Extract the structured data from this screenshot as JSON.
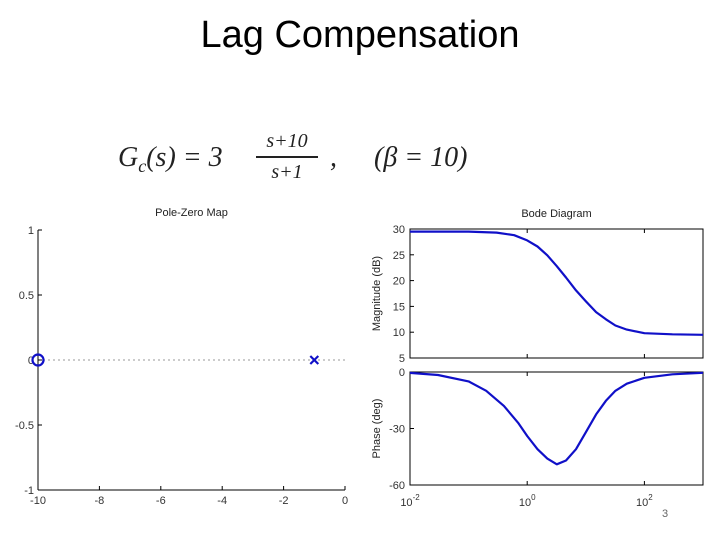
{
  "slide": {
    "title": "Lag Compensation",
    "page_number": "3",
    "formula": {
      "lhs": "G",
      "lhs_sub": "c",
      "lhs_arg": "(s) = 3",
      "numerator": "s+10",
      "denominator": "s+1",
      "separator": ",",
      "beta": "(β = 10)"
    }
  },
  "colors": {
    "plot": "#1010c8",
    "axis": "#000000",
    "tick_label": "#333333"
  },
  "chart_data": [
    {
      "type": "scatter",
      "title": "Pole-Zero Map",
      "xlabel": "",
      "ylabel": "",
      "xlim": [
        -10,
        0
      ],
      "ylim": [
        -1,
        1
      ],
      "x_ticks": [
        "-10",
        "-8",
        "-6",
        "-4",
        "-2",
        "0"
      ],
      "y_ticks": [
        "1",
        "0.5",
        "0",
        "-0.5",
        "-1"
      ],
      "grid": false,
      "series": [
        {
          "marker": "circle",
          "points": [
            {
              "x": -10,
              "y": 0
            }
          ]
        },
        {
          "marker": "cross",
          "points": [
            {
              "x": -1,
              "y": 0
            }
          ]
        }
      ]
    },
    {
      "type": "line",
      "title": "Bode Diagram",
      "x_scale": "log",
      "xlim": [
        0.01,
        1000
      ],
      "x_ticks": [
        "10^-2",
        "10^0",
        "10^2"
      ],
      "grid": false,
      "panels": [
        {
          "ylabel": "Magnitude (dB)",
          "ylim": [
            5,
            30
          ],
          "y_ticks": [
            "30",
            "25",
            "20",
            "15",
            "10",
            "5"
          ],
          "x": [
            0.01,
            0.1,
            0.3,
            0.6,
            1,
            1.5,
            2.2,
            3.2,
            4.6,
            6.8,
            10,
            15,
            22,
            32,
            50,
            100,
            300,
            1000
          ],
          "y": [
            29.5,
            29.5,
            29.3,
            28.8,
            27.8,
            26.6,
            24.9,
            22.8,
            20.6,
            18.1,
            16,
            13.9,
            12.5,
            11.3,
            10.5,
            9.8,
            9.6,
            9.5
          ]
        },
        {
          "ylabel": "Phase (deg)",
          "ylim": [
            -60,
            0
          ],
          "y_ticks": [
            "0",
            "-30",
            "-60"
          ],
          "x": [
            0.01,
            0.03,
            0.1,
            0.2,
            0.4,
            0.7,
            1,
            1.5,
            2.2,
            3.2,
            4.6,
            6.8,
            10,
            15,
            22,
            32,
            50,
            100,
            300,
            1000
          ],
          "y": [
            -0.5,
            -1.6,
            -5,
            -10,
            -18,
            -27,
            -34,
            -41,
            -46,
            -49,
            -47,
            -41,
            -32,
            -22.5,
            -15.3,
            -10,
            -6.2,
            -3.1,
            -1.2,
            -0.4
          ]
        }
      ]
    }
  ]
}
